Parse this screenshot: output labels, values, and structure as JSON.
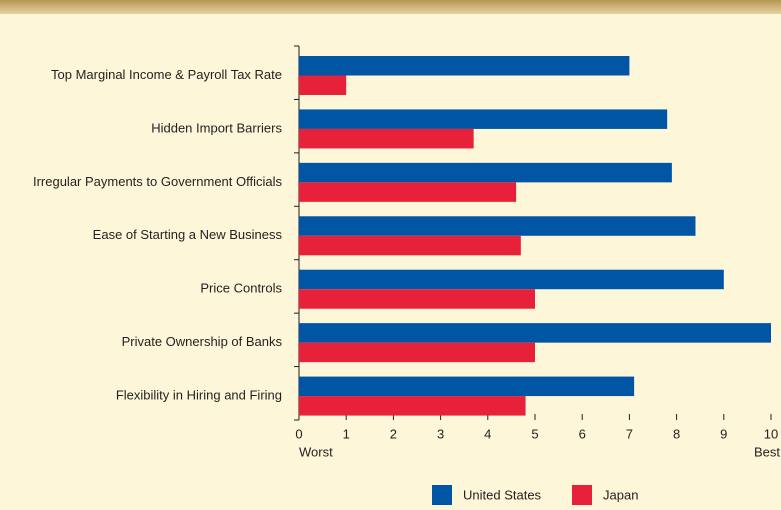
{
  "chart_data": {
    "type": "bar",
    "orientation": "horizontal",
    "categories": [
      "Top Marginal Income & Payroll Tax Rate",
      "Hidden Import Barriers",
      "Irregular Payments to Government Officials",
      "Ease of Starting a New Business",
      "Price Controls",
      "Private Ownership of Banks",
      "Flexibility in Hiring and Firing"
    ],
    "series": [
      {
        "name": "United States",
        "color": "#0055a5",
        "values": [
          7.0,
          7.8,
          7.9,
          8.4,
          9.0,
          10.0,
          7.1
        ]
      },
      {
        "name": "Japan",
        "color": "#e8213a",
        "values": [
          1.0,
          3.7,
          4.6,
          4.7,
          5.0,
          5.0,
          4.8
        ]
      }
    ],
    "xlim": [
      0,
      10
    ],
    "xticks": [
      0,
      1,
      2,
      3,
      4,
      5,
      6,
      7,
      8,
      9,
      10
    ],
    "annotations": [
      "Worst",
      "Best"
    ]
  }
}
